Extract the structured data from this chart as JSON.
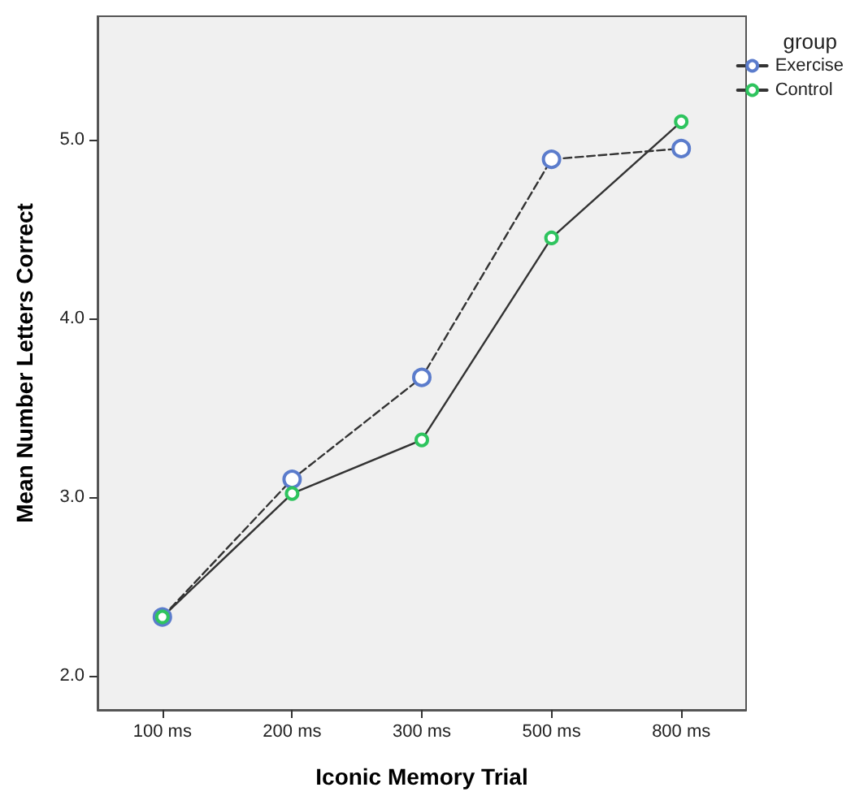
{
  "chart_data": {
    "type": "line",
    "xlabel": "Iconic Memory Trial",
    "ylabel": "Mean Number Letters Correct",
    "legend_title": "group",
    "legend": "top right",
    "marker": "circle",
    "categories": [
      "100 ms",
      "200 ms",
      "300 ms",
      "500 ms",
      "800 ms"
    ],
    "series": [
      {
        "name": "Exercise",
        "color": "#5b7ccc",
        "line_style": "dashed",
        "values": [
          2.33,
          3.1,
          3.67,
          4.89,
          4.95
        ]
      },
      {
        "name": "Control",
        "color": "#2ec45e",
        "line_style": "solid",
        "values": [
          2.33,
          3.02,
          3.32,
          4.45,
          5.1
        ]
      }
    ],
    "ylim": [
      1.81,
      5.69
    ],
    "yticks": [
      {
        "value": 2,
        "label": "2.0"
      },
      {
        "value": 3,
        "label": "3.0"
      },
      {
        "value": 4,
        "label": "4.0"
      },
      {
        "value": 5,
        "label": "5.0"
      }
    ]
  }
}
